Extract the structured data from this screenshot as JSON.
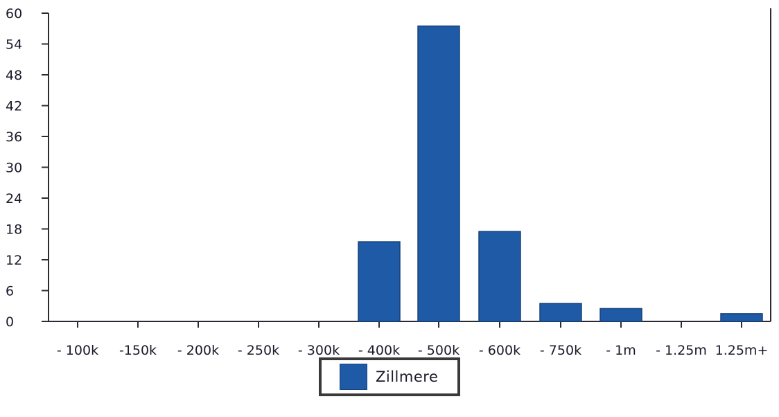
{
  "chart_data": {
    "type": "bar",
    "categories": [
      "- 100k",
      "-150k",
      "- 200k",
      "- 250k",
      "- 300k",
      "- 400k",
      "- 500k",
      "- 600k",
      "- 750k",
      "- 1m",
      "- 1.25m",
      "1.25m+"
    ],
    "series": [
      {
        "name": "Zillmere",
        "color": "#1f5aa6",
        "values": [
          0,
          0,
          0,
          0,
          0,
          15.5,
          57.5,
          17.5,
          3.5,
          2.5,
          0,
          1.5
        ]
      }
    ],
    "ylim": [
      0,
      60
    ],
    "yticks": [
      "0",
      "6",
      "12",
      "18",
      "24",
      "30",
      "36",
      "42",
      "48",
      "54",
      "60"
    ],
    "legend_position": "bottom-center",
    "grid": false
  }
}
